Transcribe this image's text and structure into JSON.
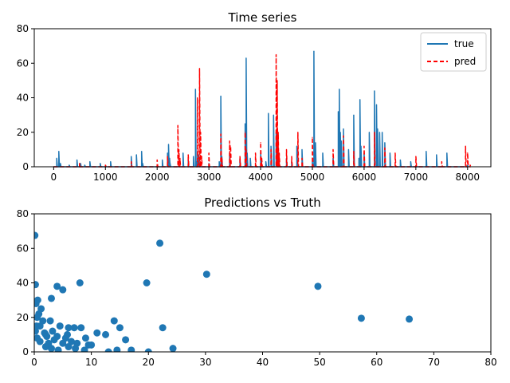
{
  "chart_data": [
    {
      "type": "line",
      "title": "Time series",
      "xlabel": "",
      "ylabel": "",
      "xlim": [
        -375,
        8450
      ],
      "ylim": [
        0,
        80
      ],
      "xticks": [
        0,
        1000,
        2000,
        3000,
        4000,
        5000,
        6000,
        7000,
        8000
      ],
      "yticks": [
        0,
        20,
        40,
        60,
        80
      ],
      "legend_position": "top-right",
      "grid": false,
      "series": [
        {
          "name": "true",
          "color": "#1f77b4",
          "style": "solid",
          "x": [
            0,
            60,
            100,
            130,
            300,
            450,
            520,
            600,
            700,
            900,
            1100,
            1500,
            1600,
            1700,
            1720,
            2100,
            2200,
            2220,
            2240,
            2250,
            2500,
            2600,
            2700,
            2740,
            2760,
            2780,
            2800,
            3000,
            3200,
            3230,
            3250,
            3400,
            3600,
            3700,
            3720,
            3740,
            3800,
            4000,
            4100,
            4150,
            4200,
            4250,
            4300,
            4350,
            4500,
            4600,
            4700,
            4800,
            5000,
            5030,
            5060,
            5200,
            5400,
            5500,
            5520,
            5540,
            5560,
            5600,
            5700,
            5800,
            5900,
            5920,
            5940,
            6000,
            6100,
            6200,
            6240,
            6260,
            6300,
            6350,
            6400,
            6500,
            6700,
            6900,
            7200,
            7400,
            7600,
            8000
          ],
          "y": [
            0,
            5,
            9,
            2,
            1,
            4,
            2,
            1,
            3,
            2,
            3,
            6,
            7,
            9,
            2,
            4,
            8,
            13,
            5,
            2,
            8,
            4,
            6,
            45,
            3,
            9,
            7,
            2,
            3,
            41,
            6,
            8,
            5,
            25,
            63,
            8,
            5,
            8,
            3,
            31,
            12,
            30,
            20,
            8,
            5,
            3,
            12,
            10,
            3,
            67,
            14,
            8,
            5,
            32,
            45,
            20,
            15,
            22,
            10,
            30,
            5,
            39,
            12,
            8,
            20,
            44,
            36,
            22,
            20,
            20,
            14,
            8,
            4,
            3,
            9,
            7,
            8,
            1
          ]
        },
        {
          "name": "pred",
          "color": "#ff0000",
          "style": "dashed",
          "x": [
            0,
            500,
            1000,
            1500,
            2000,
            2200,
            2400,
            2420,
            2440,
            2600,
            2780,
            2820,
            2840,
            2860,
            3000,
            3230,
            3250,
            3400,
            3420,
            3600,
            3700,
            3720,
            3900,
            4000,
            4020,
            4200,
            4300,
            4320,
            4340,
            4360,
            4500,
            4600,
            4720,
            4800,
            5000,
            5400,
            5600,
            5800,
            6000,
            6200,
            6400,
            6600,
            7000,
            7500,
            7960,
            8000,
            8050
          ],
          "y": [
            0,
            2,
            1,
            3,
            4,
            6,
            24,
            10,
            5,
            7,
            40,
            57,
            20,
            6,
            8,
            19,
            5,
            15,
            12,
            6,
            20,
            10,
            8,
            14,
            5,
            10,
            65,
            50,
            20,
            8,
            10,
            6,
            20,
            5,
            17,
            10,
            18,
            9,
            12,
            20,
            11,
            8,
            6,
            3,
            12,
            8,
            1
          ]
        }
      ]
    },
    {
      "type": "scatter",
      "title": "Predictions vs Truth",
      "xlabel": "",
      "ylabel": "",
      "xlim": [
        0,
        80
      ],
      "ylim": [
        0,
        80
      ],
      "xticks": [
        0,
        10,
        20,
        30,
        40,
        50,
        60,
        70,
        80
      ],
      "yticks": [
        0,
        20,
        40,
        60,
        80
      ],
      "grid": false,
      "series": [
        {
          "name": "",
          "color": "#1f77b4",
          "x": [
            0.1,
            0.2,
            0.3,
            0.5,
            0.8,
            1.0,
            1.5,
            2.0,
            2.5,
            3.0,
            3.2,
            4.0,
            4.5,
            5.0,
            5.5,
            6.0,
            7.0,
            7.5,
            8.0,
            8.2,
            9.0,
            10.0,
            11.0,
            12.5,
            13.0,
            14.0,
            14.5,
            15.0,
            16.0,
            17.0,
            19.7,
            20.0,
            22.0,
            22.5,
            24.3,
            30.2,
            49.7,
            57.3,
            65.7,
            0.2,
            0.5,
            1.0,
            2.0,
            3.0,
            4.0,
            5.0,
            6.0,
            1.2,
            2.8,
            0.6,
            3.5,
            5.8,
            7.2,
            8.8,
            9.5,
            0.4,
            1.8,
            2.2,
            4.2,
            6.5
          ],
          "y": [
            67.5,
            39,
            28,
            20,
            22,
            15,
            18,
            10,
            5,
            31,
            12,
            38,
            15,
            36,
            8,
            14,
            14,
            5,
            40,
            14,
            8,
            4,
            11,
            10,
            0,
            18,
            1,
            14,
            7,
            1,
            40,
            0,
            63,
            14,
            2,
            45,
            38,
            19.5,
            19,
            12,
            8,
            6,
            3,
            2,
            9,
            5,
            3,
            25,
            18,
            30,
            7,
            10,
            2,
            1,
            4,
            15,
            11,
            9,
            1,
            6
          ]
        }
      ]
    }
  ]
}
